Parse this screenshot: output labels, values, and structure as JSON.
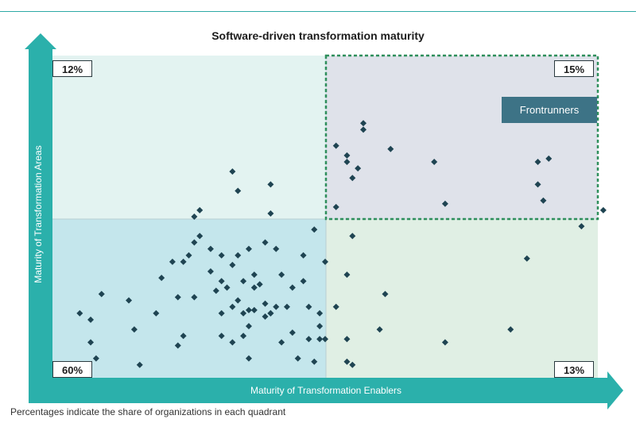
{
  "chart_data": {
    "type": "scatter",
    "title": "Software-driven transformation maturity",
    "xlabel": "Maturity of Transformation Enablers",
    "ylabel": "Maturity of Transformation Areas",
    "xlim": [
      0,
      100
    ],
    "ylim": [
      0,
      100
    ],
    "grid": false,
    "quadrant_split": {
      "x": 50,
      "y": 50
    },
    "quadrants": [
      {
        "position": "top-left",
        "share": "12%",
        "color": "#e3f3f1"
      },
      {
        "position": "top-right",
        "share": "15%",
        "color": "#dfe2ea",
        "label": "Frontrunners"
      },
      {
        "position": "bottom-left",
        "share": "60%",
        "color": "#c4e6ec"
      },
      {
        "position": "bottom-right",
        "share": "13%",
        "color": "#e0efe4"
      }
    ],
    "point_color": "#1f4452",
    "points": [
      [
        7,
        18
      ],
      [
        5,
        20
      ],
      [
        7,
        11
      ],
      [
        9,
        26
      ],
      [
        8,
        6
      ],
      [
        14,
        24
      ],
      [
        15,
        15
      ],
      [
        16,
        4
      ],
      [
        19,
        20
      ],
      [
        20,
        31
      ],
      [
        22,
        36
      ],
      [
        23,
        10
      ],
      [
        23,
        25
      ],
      [
        24,
        13
      ],
      [
        24,
        36
      ],
      [
        25,
        38
      ],
      [
        26,
        25
      ],
      [
        26,
        42
      ],
      [
        26,
        50
      ],
      [
        27,
        44
      ],
      [
        27,
        52
      ],
      [
        29,
        40
      ],
      [
        31,
        38
      ],
      [
        29,
        33
      ],
      [
        30,
        27
      ],
      [
        31,
        30
      ],
      [
        32,
        28
      ],
      [
        31,
        20
      ],
      [
        33,
        22
      ],
      [
        33,
        35
      ],
      [
        31,
        13
      ],
      [
        33,
        11
      ],
      [
        33,
        64
      ],
      [
        34,
        58
      ],
      [
        34,
        38
      ],
      [
        34,
        24
      ],
      [
        35,
        13
      ],
      [
        35,
        20
      ],
      [
        35,
        30
      ],
      [
        36,
        6
      ],
      [
        36,
        16
      ],
      [
        36,
        40
      ],
      [
        36,
        21
      ],
      [
        37,
        21
      ],
      [
        37,
        28
      ],
      [
        37,
        32
      ],
      [
        38,
        29
      ],
      [
        39,
        23
      ],
      [
        39,
        19
      ],
      [
        39,
        42
      ],
      [
        40,
        20
      ],
      [
        40,
        20
      ],
      [
        41,
        22
      ],
      [
        42,
        11
      ],
      [
        40,
        51
      ],
      [
        40,
        60
      ],
      [
        41,
        40
      ],
      [
        42,
        32
      ],
      [
        43,
        22
      ],
      [
        44,
        14
      ],
      [
        44,
        28
      ],
      [
        45,
        6
      ],
      [
        46,
        30
      ],
      [
        46,
        38
      ],
      [
        47,
        22
      ],
      [
        47,
        12
      ],
      [
        48,
        5
      ],
      [
        48,
        46
      ],
      [
        49,
        16
      ],
      [
        49,
        12
      ],
      [
        50,
        12
      ],
      [
        50,
        36
      ],
      [
        49,
        20
      ],
      [
        52,
        53
      ],
      [
        55,
        4
      ],
      [
        52,
        22
      ],
      [
        54,
        5
      ],
      [
        54,
        32
      ],
      [
        54,
        12
      ],
      [
        55,
        44
      ],
      [
        60,
        15
      ],
      [
        61,
        26
      ],
      [
        72,
        11
      ],
      [
        52,
        72
      ],
      [
        54,
        67
      ],
      [
        54,
        69
      ],
      [
        55,
        62
      ],
      [
        56,
        65
      ],
      [
        57,
        77
      ],
      [
        57,
        79
      ],
      [
        62,
        71
      ],
      [
        70,
        67
      ],
      [
        72,
        54
      ],
      [
        84,
        15
      ],
      [
        87,
        37
      ],
      [
        89,
        60
      ],
      [
        90,
        55
      ],
      [
        91,
        68
      ],
      [
        97,
        47
      ],
      [
        101,
        52
      ],
      [
        89,
        67
      ]
    ]
  },
  "footnote": "Percentages indicate the share of organizations in each quadrant"
}
